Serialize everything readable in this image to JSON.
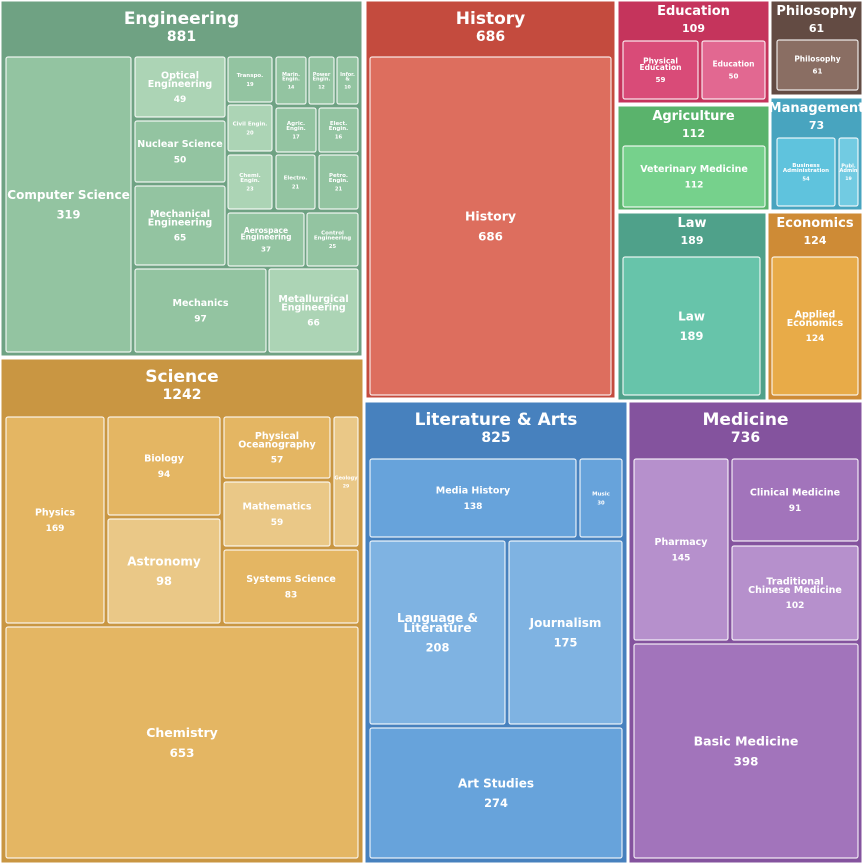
{
  "chart_data": {
    "type": "treemap",
    "categories": [
      {
        "name": "Engineering",
        "value": 881,
        "color": "#6fa283",
        "cell_color": "#93c4a1",
        "light_color": "#acd4b5",
        "children": [
          {
            "name": "Computer Science",
            "value": 319
          },
          {
            "name": "Optical Engineering",
            "value": 49
          },
          {
            "name": "Nuclear Science",
            "value": 50
          },
          {
            "name": "Mechanical Engineering",
            "value": 65
          },
          {
            "name": "Mechanics",
            "value": 97
          },
          {
            "name": "Transpo.",
            "value": 19
          },
          {
            "name": "Marin. Engin.",
            "value": 14
          },
          {
            "name": "Power Engin.",
            "value": 12
          },
          {
            "name": "Infor. &",
            "value": 10
          },
          {
            "name": "Civil Engin.",
            "value": 20
          },
          {
            "name": "Agric. Engin.",
            "value": 17
          },
          {
            "name": "Elect. Engin.",
            "value": 16
          },
          {
            "name": "Chemi. Engin.",
            "value": 23
          },
          {
            "name": "Electro.",
            "value": 21
          },
          {
            "name": "Petro. Engin.",
            "value": 21
          },
          {
            "name": "Aerospace Engineering",
            "value": 37
          },
          {
            "name": "Control Engineering",
            "value": 25
          },
          {
            "name": "Metallurgical Engineering",
            "value": 66
          }
        ]
      },
      {
        "name": "History",
        "value": 686,
        "color": "#c44b3e",
        "cell_color": "#dd6e5e",
        "light_color": "#dd6e5e",
        "children": [
          {
            "name": "History",
            "value": 686
          }
        ]
      },
      {
        "name": "Education",
        "value": 109,
        "color": "#c5345c",
        "cell_color": "#d94b78",
        "light_color": "#e26891",
        "children": [
          {
            "name": "Physical Education",
            "value": 59
          },
          {
            "name": "Education",
            "value": 50
          }
        ]
      },
      {
        "name": "Philosophy",
        "value": 61,
        "color": "#634b43",
        "cell_color": "#8a6e63",
        "light_color": "#8a6e63",
        "children": [
          {
            "name": "Philosophy",
            "value": 61
          }
        ]
      },
      {
        "name": "Agriculture",
        "value": 112,
        "color": "#5ab36c",
        "cell_color": "#76d18c",
        "light_color": "#76d18c",
        "children": [
          {
            "name": "Veterinary Medicine",
            "value": 112
          }
        ]
      },
      {
        "name": "Management",
        "value": 73,
        "color": "#48a4bf",
        "cell_color": "#5fc3dd",
        "light_color": "#72cbe2",
        "children": [
          {
            "name": "Business Administration",
            "value": 54
          },
          {
            "name": "Publ. Admin",
            "value": 19
          }
        ]
      },
      {
        "name": "Law",
        "value": 189,
        "color": "#4fa18a",
        "cell_color": "#67c4aa",
        "light_color": "#67c4aa",
        "children": [
          {
            "name": "Law",
            "value": 189
          }
        ]
      },
      {
        "name": "Economics",
        "value": 124,
        "color": "#ce8b36",
        "cell_color": "#e8ab48",
        "light_color": "#e8ab48",
        "children": [
          {
            "name": "Applied Economics",
            "value": 124
          }
        ]
      },
      {
        "name": "Science",
        "value": 1242,
        "color": "#c99642",
        "cell_color": "#e4b663",
        "light_color": "#eac887",
        "children": [
          {
            "name": "Physics",
            "value": 169
          },
          {
            "name": "Biology",
            "value": 94
          },
          {
            "name": "Astronomy",
            "value": 98
          },
          {
            "name": "Physical Oceanography",
            "value": 57
          },
          {
            "name": "Mathematics",
            "value": 59
          },
          {
            "name": "Systems Science",
            "value": 83
          },
          {
            "name": "Geology",
            "value": 29
          },
          {
            "name": "Chemistry",
            "value": 653
          }
        ]
      },
      {
        "name": "Literature & Arts",
        "value": 825,
        "color": "#4781be",
        "cell_color": "#67a3db",
        "light_color": "#7fb3e2",
        "children": [
          {
            "name": "Media History",
            "value": 138
          },
          {
            "name": "Music",
            "value": 30
          },
          {
            "name": "Language & Literature",
            "value": 208
          },
          {
            "name": "Journalism",
            "value": 175
          },
          {
            "name": "Art Studies",
            "value": 274
          }
        ]
      },
      {
        "name": "Medicine",
        "value": 736,
        "color": "#84539e",
        "cell_color": "#a274bb",
        "light_color": "#b690cc",
        "children": [
          {
            "name": "Pharmacy",
            "value": 145
          },
          {
            "name": "Clinical Medicine",
            "value": 91
          },
          {
            "name": "Traditional Chinese Medicine",
            "value": 102
          },
          {
            "name": "Basic Medicine",
            "value": 398
          }
        ]
      }
    ]
  }
}
